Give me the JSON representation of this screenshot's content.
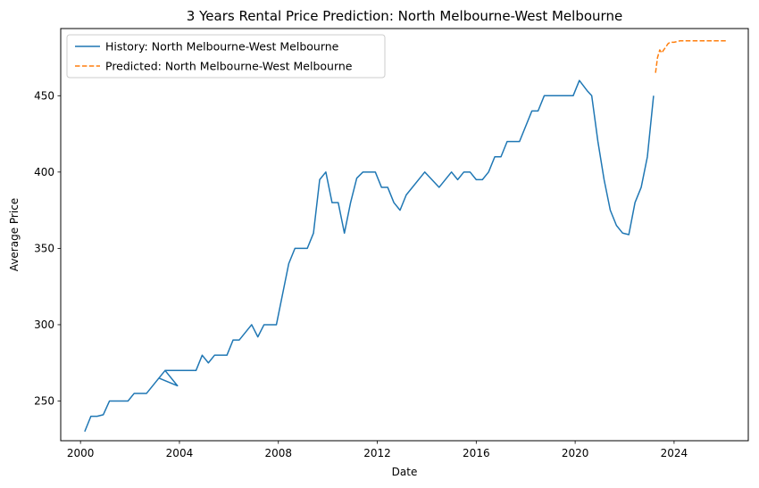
{
  "chart_data": {
    "type": "line",
    "title": "3 Years Rental Price Prediction: North Melbourne-West Melbourne",
    "xlabel": "Date",
    "ylabel": "Average Price",
    "xlim": [
      1999.2,
      2027.0
    ],
    "ylim": [
      224,
      494
    ],
    "x_ticks": [
      2000,
      2004,
      2008,
      2012,
      2016,
      2020,
      2024
    ],
    "y_ticks": [
      250,
      300,
      350,
      400,
      450
    ],
    "grid": false,
    "legend_position": "top-left",
    "series": [
      {
        "name": "History: North Melbourne-West Melbourne",
        "color": "#1f77b4",
        "style": "solid",
        "points": [
          [
            2000.17,
            230
          ],
          [
            2000.42,
            240
          ],
          [
            2000.67,
            240
          ],
          [
            2000.92,
            241
          ],
          [
            2001.17,
            250
          ],
          [
            2001.5,
            250
          ],
          [
            2001.92,
            250
          ],
          [
            2002.17,
            255
          ],
          [
            2002.67,
            255
          ],
          [
            2003.17,
            265
          ],
          [
            2003.42,
            270
          ],
          [
            2003.92,
            260
          ],
          [
            2003.17,
            265
          ],
          [
            2003.42,
            270
          ],
          [
            2004.0,
            270
          ],
          [
            2004.67,
            270
          ],
          [
            2004.92,
            280
          ],
          [
            2005.17,
            275
          ],
          [
            2005.42,
            280
          ],
          [
            2005.92,
            280
          ],
          [
            2006.17,
            290
          ],
          [
            2006.42,
            290
          ],
          [
            2006.92,
            300
          ],
          [
            2007.17,
            292
          ],
          [
            2007.42,
            300
          ],
          [
            2007.92,
            300
          ],
          [
            2008.17,
            320
          ],
          [
            2008.42,
            340
          ],
          [
            2008.67,
            350
          ],
          [
            2009.17,
            350
          ],
          [
            2009.42,
            360
          ],
          [
            2009.67,
            395
          ],
          [
            2009.92,
            400
          ],
          [
            2010.17,
            380
          ],
          [
            2010.42,
            380
          ],
          [
            2010.67,
            360
          ],
          [
            2010.92,
            380
          ],
          [
            2011.17,
            396
          ],
          [
            2011.42,
            400
          ],
          [
            2011.92,
            400
          ],
          [
            2012.17,
            390
          ],
          [
            2012.42,
            390
          ],
          [
            2012.67,
            380
          ],
          [
            2012.92,
            375
          ],
          [
            2013.17,
            385
          ],
          [
            2013.92,
            400
          ],
          [
            2014.5,
            390
          ],
          [
            2015.0,
            400
          ],
          [
            2015.25,
            395
          ],
          [
            2015.5,
            400
          ],
          [
            2015.75,
            400
          ],
          [
            2016.0,
            395
          ],
          [
            2016.25,
            395
          ],
          [
            2016.5,
            400
          ],
          [
            2016.75,
            410
          ],
          [
            2017.0,
            410
          ],
          [
            2017.25,
            420
          ],
          [
            2017.75,
            420
          ],
          [
            2018.25,
            440
          ],
          [
            2018.5,
            440
          ],
          [
            2018.75,
            450
          ],
          [
            2019.92,
            450
          ],
          [
            2020.17,
            460
          ],
          [
            2020.5,
            453
          ],
          [
            2020.67,
            450
          ],
          [
            2020.92,
            420
          ],
          [
            2021.17,
            395
          ],
          [
            2021.42,
            375
          ],
          [
            2021.67,
            365
          ],
          [
            2021.92,
            360
          ],
          [
            2022.17,
            359
          ],
          [
            2022.42,
            380
          ],
          [
            2022.67,
            390
          ],
          [
            2022.92,
            410
          ],
          [
            2023.17,
            450
          ]
        ]
      },
      {
        "name": "Predicted: North Melbourne-West Melbourne",
        "color": "#ff7f0e",
        "style": "dashed",
        "points": [
          [
            2023.25,
            465
          ],
          [
            2023.33,
            475
          ],
          [
            2023.42,
            480
          ],
          [
            2023.5,
            478
          ],
          [
            2023.58,
            480
          ],
          [
            2023.67,
            482
          ],
          [
            2023.75,
            484
          ],
          [
            2023.83,
            485
          ],
          [
            2024.0,
            485
          ],
          [
            2024.25,
            486
          ],
          [
            2024.5,
            486
          ],
          [
            2025.0,
            486
          ],
          [
            2025.5,
            486
          ],
          [
            2026.17,
            486
          ]
        ]
      }
    ]
  }
}
